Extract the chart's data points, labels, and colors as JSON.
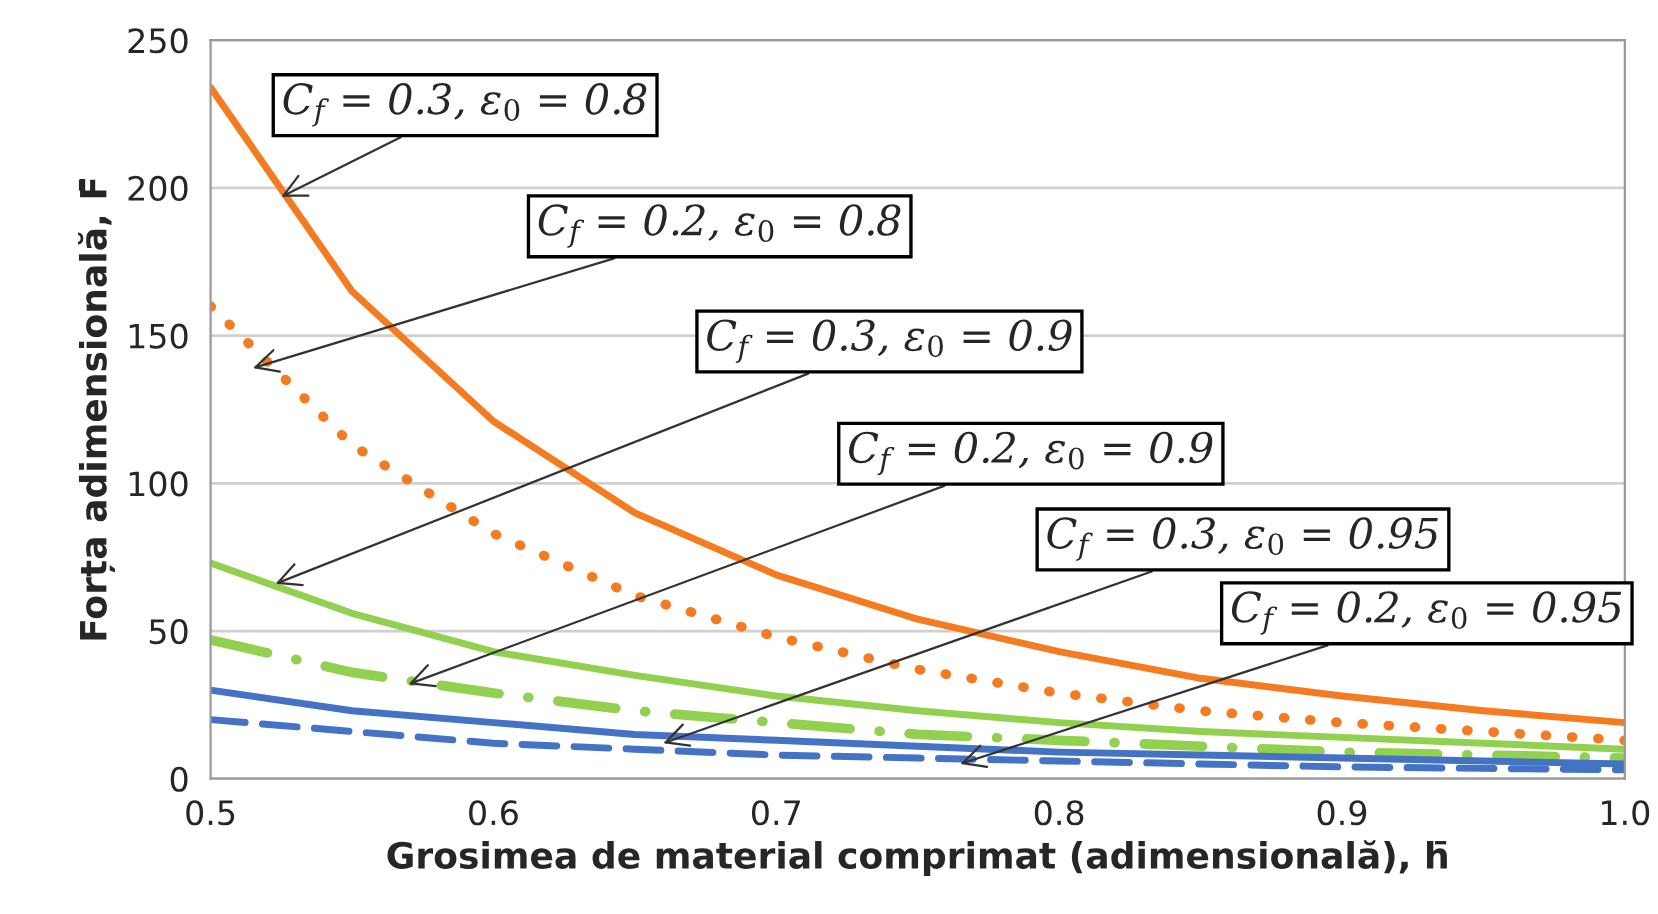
{
  "chart_data": {
    "type": "line",
    "xlabel": "Grosimea de material comprimat (adimensională), h̄",
    "ylabel": "Forța adimensională, F̄",
    "x": [
      0.5,
      0.55,
      0.6,
      0.65,
      0.7,
      0.75,
      0.8,
      0.85,
      0.9,
      0.95,
      1.0
    ],
    "series": [
      {
        "color": "#f47b20",
        "line_style": "solid",
        "values": [
          234,
          165,
          121,
          90,
          69,
          54,
          43,
          34,
          28,
          23,
          19
        ]
      },
      {
        "color": "#f47b20",
        "line_style": "dotted",
        "values": [
          160,
          113,
          83,
          62,
          48,
          37,
          29,
          23,
          19,
          16,
          13
        ]
      },
      {
        "color": "#92d050",
        "line_style": "solid",
        "values": [
          73,
          56,
          43,
          35,
          28,
          23,
          19,
          16,
          14,
          12,
          10
        ]
      },
      {
        "color": "#92d050",
        "line_style": "dashdot",
        "values": [
          47,
          36,
          29,
          23,
          19,
          15,
          13,
          11,
          9,
          8,
          7
        ]
      },
      {
        "color": "#4472c4",
        "line_style": "solid",
        "values": [
          30,
          23,
          19,
          15,
          13,
          11,
          9,
          8,
          7,
          6,
          5
        ]
      },
      {
        "color": "#4472c4",
        "line_style": "dashed",
        "values": [
          20,
          16,
          12,
          10,
          8,
          7,
          6,
          5,
          4,
          3.5,
          3
        ]
      }
    ],
    "xlim": [
      0.5,
      1.0
    ],
    "ylim": [
      0,
      250
    ],
    "xticks": [
      {
        "value": 0.5,
        "label": "0.5"
      },
      {
        "value": 0.6,
        "label": "0.6"
      },
      {
        "value": 0.7,
        "label": "0.7"
      },
      {
        "value": 0.8,
        "label": "0.8"
      },
      {
        "value": 0.9,
        "label": "0.9"
      },
      {
        "value": 1.0,
        "label": "1.0"
      }
    ],
    "yticks": [
      0,
      50,
      100,
      150,
      200,
      250
    ],
    "grid": "y",
    "legend": false,
    "marker": "none",
    "annotations": [
      {
        "text": "C$_{f}$ = 0.3, ε$_{0}$ = 0.8",
        "x": 0.525,
        "y": 197
      },
      {
        "text": "C$_{f}$ = 0.2, ε$_{0}$ = 0.8",
        "x": 0.515,
        "y": 139
      },
      {
        "text": "C$_{f}$ = 0.3, ε$_{0}$ = 0.9",
        "x": 0.523,
        "y": 66
      },
      {
        "text": "C$_{f}$ = 0.2, ε$_{0}$ = 0.9",
        "x": 0.57,
        "y": 32
      },
      {
        "text": "C$_{f}$ = 0.3, ε$_{0}$ = 0.95",
        "x": 0.66,
        "y": 12
      },
      {
        "text": "C$_{f}$ = 0.2, ε$_{0}$ = 0.95",
        "x": 0.765,
        "y": 5
      }
    ]
  }
}
